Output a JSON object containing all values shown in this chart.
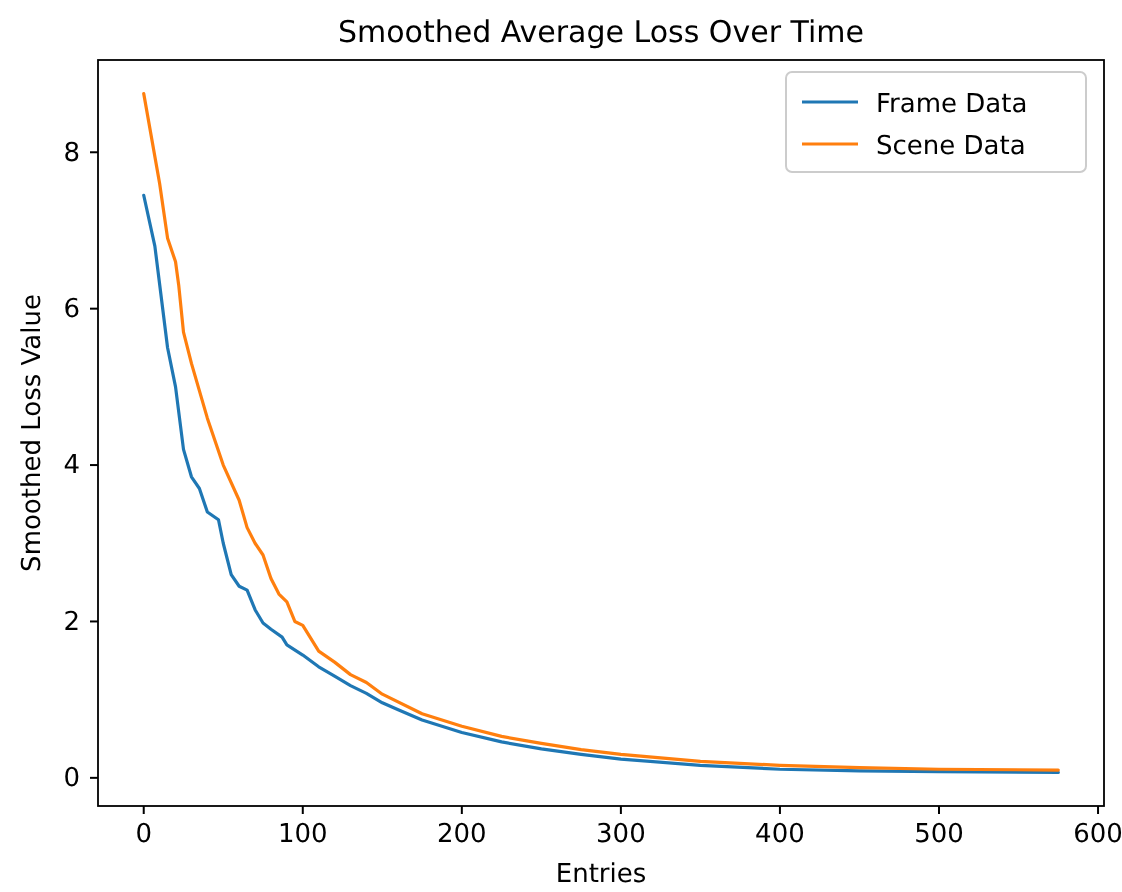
{
  "chart_data": {
    "type": "line",
    "title": "Smoothed Average Loss Over Time",
    "xlabel": "Entries",
    "ylabel": "Smoothed Loss Value",
    "xlim": [
      -28.75,
      603.75
    ],
    "xticks": [
      0,
      100,
      200,
      300,
      400,
      500,
      600
    ],
    "ylim": [
      -0.36,
      9.18
    ],
    "yticks": [
      0,
      2,
      4,
      6,
      8
    ],
    "legend": "top right",
    "grid": false,
    "series": [
      {
        "name": "Frame Data",
        "color": "#1f77b4",
        "x": [
          0,
          7,
          15,
          20,
          25,
          30,
          35,
          40,
          47,
          50,
          55,
          60,
          65,
          70,
          75,
          80,
          87,
          90,
          100,
          110,
          120,
          130,
          140,
          150,
          160,
          175,
          200,
          225,
          250,
          275,
          300,
          350,
          400,
          450,
          500,
          575
        ],
        "values": [
          7.45,
          6.8,
          5.5,
          5.0,
          4.2,
          3.85,
          3.7,
          3.4,
          3.3,
          3.0,
          2.6,
          2.45,
          2.4,
          2.15,
          1.98,
          1.9,
          1.8,
          1.7,
          1.57,
          1.42,
          1.3,
          1.18,
          1.08,
          0.96,
          0.87,
          0.74,
          0.58,
          0.46,
          0.37,
          0.3,
          0.24,
          0.16,
          0.11,
          0.09,
          0.08,
          0.07
        ]
      },
      {
        "name": "Scene Data",
        "color": "#ff7f0e",
        "x": [
          0,
          10,
          15,
          20,
          22,
          25,
          30,
          40,
          50,
          60,
          65,
          70,
          75,
          80,
          85,
          90,
          95,
          100,
          110,
          120,
          130,
          140,
          150,
          175,
          200,
          225,
          250,
          275,
          300,
          350,
          400,
          450,
          500,
          575
        ],
        "values": [
          8.75,
          7.6,
          6.9,
          6.6,
          6.3,
          5.7,
          5.3,
          4.6,
          4.0,
          3.55,
          3.2,
          3.0,
          2.85,
          2.55,
          2.35,
          2.25,
          2.0,
          1.95,
          1.62,
          1.48,
          1.32,
          1.22,
          1.07,
          0.82,
          0.66,
          0.53,
          0.44,
          0.36,
          0.3,
          0.21,
          0.16,
          0.13,
          0.11,
          0.1
        ]
      }
    ]
  }
}
